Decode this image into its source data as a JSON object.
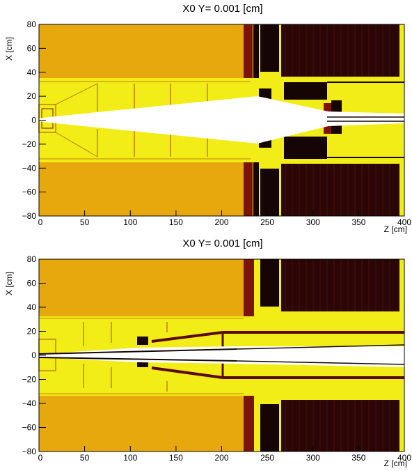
{
  "palette": {
    "orange": "#E6A80C",
    "yellow": "#F2EC17",
    "darkred": "#7A1308",
    "black": "#150505",
    "white": "#FFFFFF"
  },
  "panels": [
    {
      "title": "X0 Y=  0.001 [cm]",
      "xlabel": "Z [cm]",
      "ylabel": "X [cm]",
      "xlim": [
        0,
        400
      ],
      "ylim": [
        -80,
        80
      ],
      "xticks": [
        "0",
        "50",
        "100",
        "150",
        "200",
        "250",
        "300",
        "350",
        "400"
      ],
      "yticks": [
        "80",
        "60",
        "40",
        "20",
        "0",
        "−20",
        "−40",
        "−60",
        "−80"
      ]
    },
    {
      "title": "X0 Y=  0.001 [cm]",
      "xlabel": "Z [cm]",
      "ylabel": "X [cm]",
      "xlim": [
        0,
        400
      ],
      "ylim": [
        -80,
        80
      ],
      "xticks": [
        "0",
        "50",
        "100",
        "150",
        "200",
        "250",
        "300",
        "350",
        "400"
      ],
      "yticks": [
        "80",
        "60",
        "40",
        "20",
        "0",
        "−20",
        "−40",
        "−60",
        "−80"
      ]
    }
  ]
}
